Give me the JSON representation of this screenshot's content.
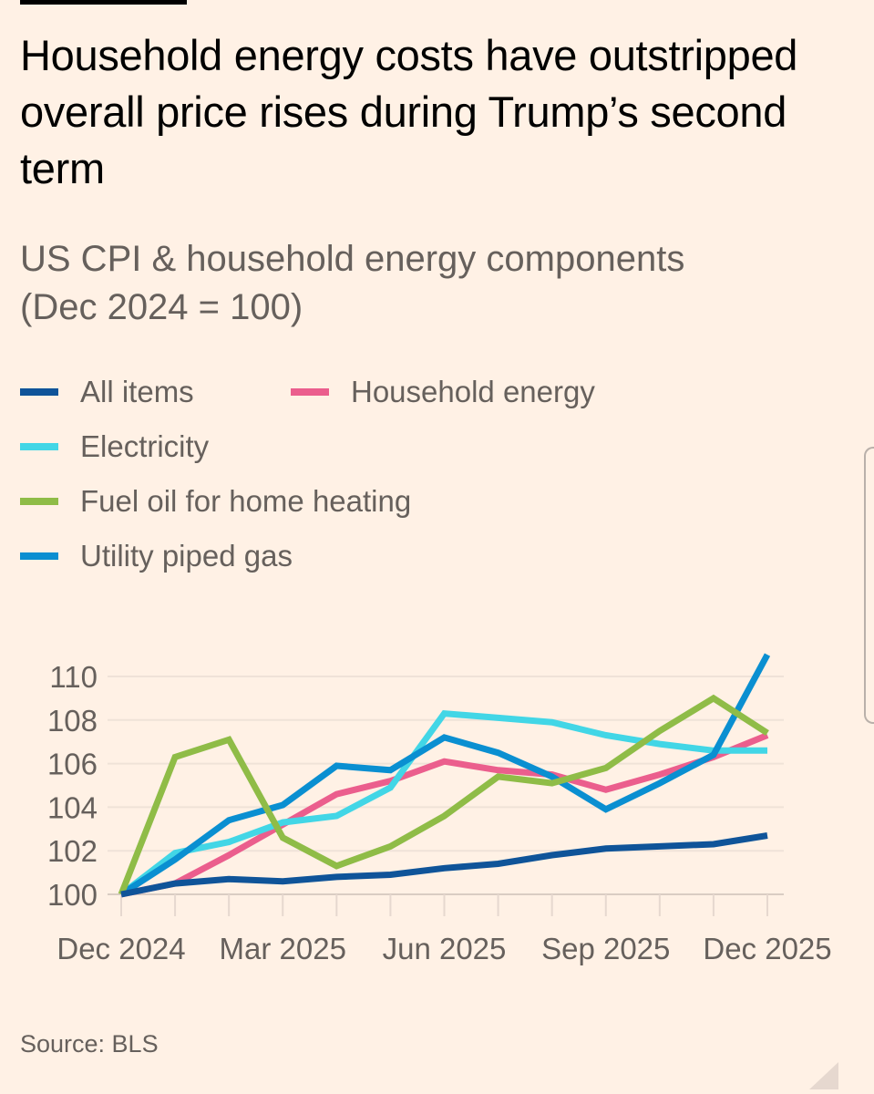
{
  "header": {
    "title": "Household energy costs have outstripped overall price rises during Trump’s second term",
    "subtitle_line1": "US CPI & household energy components",
    "subtitle_line2": "(Dec 2024 = 100)"
  },
  "legend": [
    {
      "label": "All items",
      "color": "#0f5499"
    },
    {
      "label": "Household energy",
      "color": "#eb5e8d"
    },
    {
      "label": "Electricity",
      "color": "#42d6e6"
    },
    {
      "label": "Fuel oil for home heating",
      "color": "#8fbc47"
    },
    {
      "label": "Utility piped gas",
      "color": "#0a8fd1"
    }
  ],
  "source": "Source: BLS",
  "chart_data": {
    "type": "line",
    "title": "US CPI & household energy components (Dec 2024 = 100)",
    "xlabel": "",
    "ylabel": "",
    "x": [
      "Dec 2024",
      "Jan 2025",
      "Feb 2025",
      "Mar 2025",
      "Apr 2025",
      "May 2025",
      "Jun 2025",
      "Jul 2025",
      "Aug 2025",
      "Sep 2025",
      "Oct 2025",
      "Nov 2025",
      "Dec 2025"
    ],
    "x_tick_labels": [
      "Dec 2024",
      "Mar 2025",
      "Jun 2025",
      "Sep 2025",
      "Dec 2025"
    ],
    "y_ticks": [
      100,
      102,
      104,
      106,
      108,
      110
    ],
    "ylim": [
      100,
      111
    ],
    "grid": true,
    "legend_position": "top-left",
    "series": [
      {
        "name": "Household energy",
        "color": "#eb5e8d",
        "values": [
          100,
          100.5,
          101.8,
          103.2,
          104.6,
          105.2,
          106.1,
          105.7,
          105.5,
          104.8,
          105.5,
          106.3,
          107.3
        ]
      },
      {
        "name": "Electricity",
        "color": "#42d6e6",
        "values": [
          100,
          101.9,
          102.4,
          103.3,
          103.6,
          104.9,
          108.3,
          108.1,
          107.9,
          107.3,
          106.9,
          106.6,
          106.6
        ]
      },
      {
        "name": "Utility piped gas",
        "color": "#0a8fd1",
        "values": [
          100,
          101.6,
          103.4,
          104.1,
          105.9,
          105.7,
          107.2,
          106.5,
          105.4,
          103.9,
          105.1,
          106.4,
          111.0
        ]
      },
      {
        "name": "Fuel oil for home heating",
        "color": "#8fbc47",
        "values": [
          100,
          106.3,
          107.1,
          102.6,
          101.3,
          102.2,
          103.6,
          105.4,
          105.1,
          105.8,
          107.5,
          109.0,
          107.4
        ]
      },
      {
        "name": "All items",
        "color": "#0f5499",
        "values": [
          100,
          100.5,
          100.7,
          100.6,
          100.8,
          100.9,
          101.2,
          101.4,
          101.8,
          102.1,
          102.2,
          102.3,
          102.7
        ]
      }
    ]
  }
}
